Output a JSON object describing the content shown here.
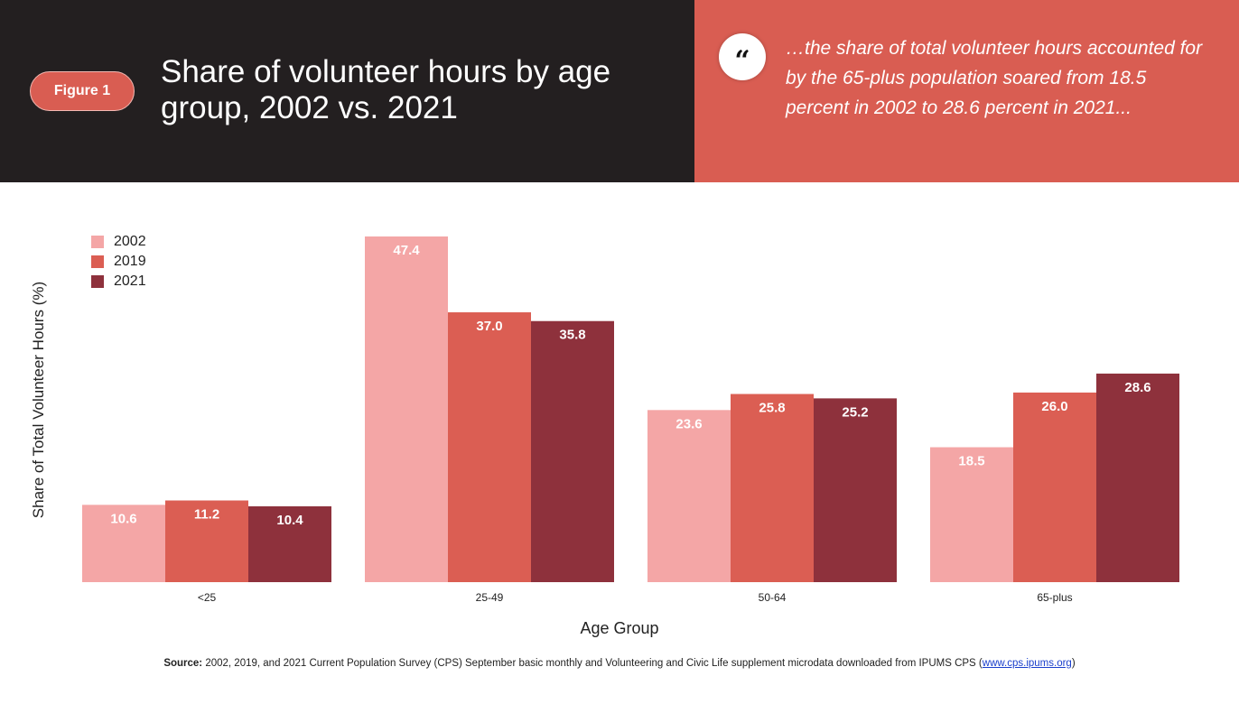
{
  "header": {
    "badge": "Figure 1",
    "title": "Share of volunteer hours by age group, 2002 vs. 2021",
    "quote_icon": "quote-open-icon",
    "quote": "…the share of total volunteer hours accounted for by the 65-plus population soared from 18.5 percent in 2002 to 28.6 percent in 2021...",
    "colors": {
      "dark_panel": "#231f20",
      "accent_panel": "#d95d52"
    }
  },
  "chart_data": {
    "type": "bar",
    "title": "Share of volunteer hours by age group, 2002 vs. 2021",
    "xlabel": "Age Group",
    "ylabel": "Share of Total Volunteer Hours (%)",
    "categories": [
      "<25",
      "25-49",
      "50-64",
      "65-plus"
    ],
    "series": [
      {
        "name": "2002",
        "color": "#f4a6a6",
        "values": [
          10.6,
          47.4,
          23.6,
          18.5
        ]
      },
      {
        "name": "2019",
        "color": "#db5e53",
        "values": [
          11.2,
          37.0,
          25.8,
          26.0
        ]
      },
      {
        "name": "2021",
        "color": "#8e313c",
        "values": [
          10.4,
          35.8,
          25.2,
          28.6
        ]
      }
    ],
    "ylim": [
      0,
      50
    ],
    "grid": false,
    "legend": "top-left",
    "data_labels": true
  },
  "footer": {
    "source_label": "Source:",
    "source_text": " 2002, 2019, and 2021 Current Population Survey (CPS) September basic monthly and Volunteering and Civic Life supplement microdata downloaded from IPUMS CPS (",
    "source_link": "www.cps.ipums.org",
    "source_end": ")"
  }
}
